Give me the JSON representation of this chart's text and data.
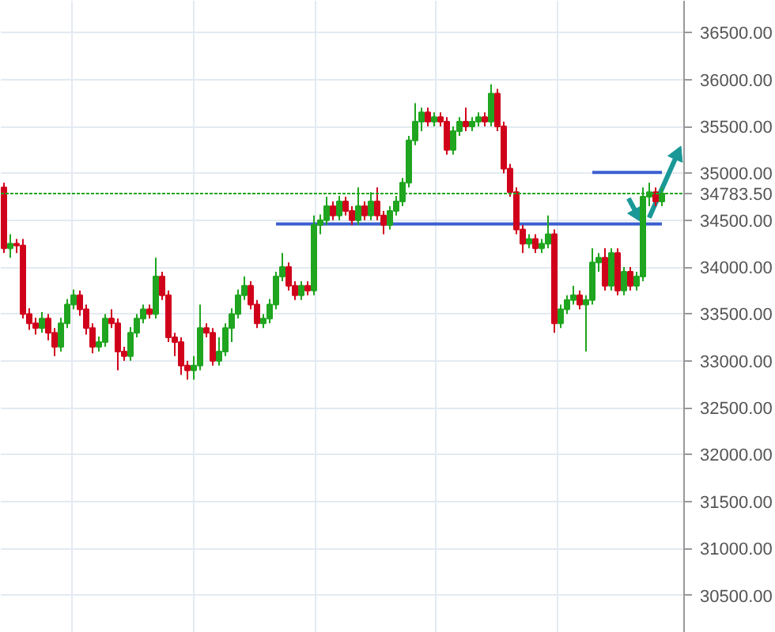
{
  "chart_data": {
    "type": "candlestick",
    "categories": [
      null,
      null,
      null,
      null,
      null,
      null,
      null,
      null,
      null,
      null,
      null,
      null,
      null,
      null,
      null,
      null,
      null,
      null,
      null,
      null,
      null,
      null,
      null,
      null,
      null,
      null,
      null,
      null,
      null,
      null,
      null,
      null,
      null,
      null,
      null,
      null,
      null,
      null,
      null,
      null,
      null,
      null,
      null,
      null,
      null,
      null,
      null,
      null,
      null,
      null,
      null,
      null,
      null,
      null,
      null,
      null,
      null,
      null,
      null,
      null,
      null,
      null,
      null,
      null,
      null,
      null,
      null,
      null,
      null,
      null,
      null,
      null,
      null,
      null,
      null,
      null,
      null,
      null,
      null,
      null,
      null,
      null,
      null,
      null,
      null,
      null,
      null,
      null,
      null,
      null,
      null,
      null,
      null,
      null,
      null,
      null,
      null,
      null,
      null,
      null,
      null,
      null,
      null,
      null,
      null
    ],
    "ohlc": [
      [
        34850,
        34900,
        34150,
        34200
      ],
      [
        34200,
        34350,
        34100,
        34250
      ],
      [
        34250,
        34300,
        34150,
        34230
      ],
      [
        34230,
        34300,
        33450,
        33500
      ],
      [
        33500,
        33560,
        33330,
        33400
      ],
      [
        33400,
        33460,
        33280,
        33350
      ],
      [
        33350,
        33520,
        33300,
        33450
      ],
      [
        33450,
        33500,
        33220,
        33300
      ],
      [
        33300,
        33350,
        33050,
        33150
      ],
      [
        33150,
        33460,
        33100,
        33400
      ],
      [
        33400,
        33660,
        33350,
        33600
      ],
      [
        33600,
        33760,
        33550,
        33700
      ],
      [
        33700,
        33750,
        33480,
        33550
      ],
      [
        33550,
        33600,
        33280,
        33350
      ],
      [
        33350,
        33400,
        33080,
        33150
      ],
      [
        33150,
        33260,
        33100,
        33200
      ],
      [
        33200,
        33500,
        33150,
        33450
      ],
      [
        33450,
        33550,
        33350,
        33400
      ],
      [
        33400,
        33450,
        32900,
        33100
      ],
      [
        33100,
        33150,
        33000,
        33050
      ],
      [
        33050,
        33360,
        33000,
        33300
      ],
      [
        33300,
        33500,
        33250,
        33450
      ],
      [
        33450,
        33600,
        33400,
        33550
      ],
      [
        33550,
        33600,
        33450,
        33500
      ],
      [
        33500,
        34100,
        33450,
        33900
      ],
      [
        33900,
        33950,
        33650,
        33700
      ],
      [
        33700,
        33750,
        33200,
        33250
      ],
      [
        33250,
        33300,
        33050,
        33200
      ],
      [
        33200,
        33250,
        32850,
        32950
      ],
      [
        32950,
        33000,
        32800,
        32900
      ],
      [
        32900,
        33050,
        32800,
        32950
      ],
      [
        32950,
        33600,
        32900,
        33350
      ],
      [
        33350,
        33400,
        33250,
        33300
      ],
      [
        33300,
        33350,
        32950,
        33000
      ],
      [
        33000,
        33250,
        32950,
        33100
      ],
      [
        33100,
        33400,
        33050,
        33350
      ],
      [
        33350,
        33560,
        33200,
        33500
      ],
      [
        33500,
        33760,
        33450,
        33700
      ],
      [
        33700,
        33900,
        33650,
        33800
      ],
      [
        33800,
        33850,
        33550,
        33600
      ],
      [
        33600,
        33650,
        33350,
        33400
      ],
      [
        33400,
        33500,
        33350,
        33450
      ],
      [
        33450,
        33660,
        33400,
        33600
      ],
      [
        33600,
        33950,
        33550,
        33900
      ],
      [
        33900,
        34150,
        33850,
        34000
      ],
      [
        34000,
        34050,
        33750,
        33800
      ],
      [
        33800,
        33850,
        33650,
        33700
      ],
      [
        33700,
        33850,
        33650,
        33800
      ],
      [
        33800,
        33850,
        33700,
        33750
      ],
      [
        33750,
        34550,
        33700,
        34450
      ],
      [
        34450,
        34560,
        34350,
        34500
      ],
      [
        34500,
        34750,
        34450,
        34650
      ],
      [
        34650,
        34700,
        34500,
        34550
      ],
      [
        34550,
        34760,
        34500,
        34700
      ],
      [
        34700,
        34750,
        34550,
        34600
      ],
      [
        34600,
        34650,
        34450,
        34500
      ],
      [
        34500,
        34850,
        34450,
        34650
      ],
      [
        34650,
        34700,
        34500,
        34550
      ],
      [
        34550,
        34800,
        34500,
        34700
      ],
      [
        34700,
        34850,
        34500,
        34550
      ],
      [
        34550,
        34600,
        34350,
        34450
      ],
      [
        34450,
        34650,
        34400,
        34600
      ],
      [
        34600,
        34760,
        34550,
        34700
      ],
      [
        34700,
        34950,
        34650,
        34900
      ],
      [
        34900,
        35400,
        34850,
        35350
      ],
      [
        35350,
        35750,
        35300,
        35550
      ],
      [
        35550,
        35700,
        35450,
        35650
      ],
      [
        35650,
        35700,
        35500,
        35550
      ],
      [
        35550,
        35650,
        35500,
        35600
      ],
      [
        35600,
        35650,
        35500,
        35550
      ],
      [
        35550,
        35600,
        35200,
        35250
      ],
      [
        35250,
        35500,
        35200,
        35450
      ],
      [
        35450,
        35600,
        35400,
        35550
      ],
      [
        35550,
        35700,
        35450,
        35500
      ],
      [
        35500,
        35600,
        35450,
        35550
      ],
      [
        35550,
        35650,
        35500,
        35600
      ],
      [
        35600,
        35650,
        35500,
        35550
      ],
      [
        35550,
        35950,
        35500,
        35850
      ],
      [
        35850,
        35900,
        35450,
        35500
      ],
      [
        35500,
        35550,
        35000,
        35050
      ],
      [
        35050,
        35100,
        34750,
        34800
      ],
      [
        34800,
        34850,
        34350,
        34400
      ],
      [
        34400,
        34450,
        34150,
        34250
      ],
      [
        34250,
        34350,
        34200,
        34300
      ],
      [
        34300,
        34350,
        34150,
        34200
      ],
      [
        34200,
        34300,
        34150,
        34250
      ],
      [
        34250,
        34550,
        34200,
        34350
      ],
      [
        34350,
        34400,
        33300,
        33400
      ],
      [
        33400,
        33600,
        33350,
        33550
      ],
      [
        33550,
        33700,
        33500,
        33650
      ],
      [
        33650,
        33800,
        33600,
        33700
      ],
      [
        33700,
        33750,
        33550,
        33600
      ],
      [
        33600,
        33700,
        33100,
        33650
      ],
      [
        33650,
        34200,
        33600,
        34050
      ],
      [
        34050,
        34150,
        33950,
        34100
      ],
      [
        34100,
        34200,
        33750,
        33800
      ],
      [
        33800,
        34200,
        33750,
        34150
      ],
      [
        34150,
        34200,
        33700,
        33750
      ],
      [
        33750,
        34000,
        33700,
        33950
      ],
      [
        33950,
        34000,
        33750,
        33800
      ],
      [
        33800,
        33950,
        33750,
        33900
      ],
      [
        33900,
        34850,
        33850,
        34750
      ],
      [
        34750,
        34900,
        34650,
        34800
      ],
      [
        34800,
        34850,
        34650,
        34700
      ],
      [
        34700,
        34850,
        34650,
        34783.5
      ]
    ],
    "colors": [
      "#d0021b",
      "#1fa51f",
      "#d0021b",
      "#d0021b",
      "#d0021b",
      "#d0021b",
      "#1fa51f",
      "#d0021b",
      "#d0021b",
      "#1fa51f",
      "#1fa51f",
      "#1fa51f",
      "#d0021b",
      "#d0021b",
      "#d0021b",
      "#1fa51f",
      "#1fa51f",
      "#d0021b",
      "#d0021b",
      "#d0021b",
      "#1fa51f",
      "#1fa51f",
      "#1fa51f",
      "#d0021b",
      "#1fa51f",
      "#d0021b",
      "#d0021b",
      "#d0021b",
      "#d0021b",
      "#d0021b",
      "#1fa51f",
      "#1fa51f",
      "#d0021b",
      "#d0021b",
      "#1fa51f",
      "#1fa51f",
      "#1fa51f",
      "#1fa51f",
      "#1fa51f",
      "#d0021b",
      "#d0021b",
      "#1fa51f",
      "#1fa51f",
      "#1fa51f",
      "#1fa51f",
      "#d0021b",
      "#d0021b",
      "#1fa51f",
      "#d0021b",
      "#1fa51f",
      "#1fa51f",
      "#1fa51f",
      "#d0021b",
      "#1fa51f",
      "#d0021b",
      "#d0021b",
      "#1fa51f",
      "#d0021b",
      "#1fa51f",
      "#d0021b",
      "#d0021b",
      "#1fa51f",
      "#1fa51f",
      "#1fa51f",
      "#1fa51f",
      "#1fa51f",
      "#1fa51f",
      "#d0021b",
      "#1fa51f",
      "#d0021b",
      "#d0021b",
      "#1fa51f",
      "#1fa51f",
      "#d0021b",
      "#1fa51f",
      "#1fa51f",
      "#d0021b",
      "#1fa51f",
      "#d0021b",
      "#d0021b",
      "#d0021b",
      "#d0021b",
      "#d0021b",
      "#1fa51f",
      "#d0021b",
      "#1fa51f",
      "#1fa51f",
      "#d0021b",
      "#1fa51f",
      "#1fa51f",
      "#1fa51f",
      "#d0021b",
      "#1fa51f",
      "#1fa51f",
      "#1fa51f",
      "#d0021b",
      "#1fa51f",
      "#d0021b",
      "#1fa51f",
      "#d0021b",
      "#1fa51f",
      "#1fa51f",
      "#1fa51f",
      "#d0021b",
      "#1fa51f"
    ],
    "series": [
      {
        "type": "line",
        "color": "#3b5fd0",
        "values": [
          null,
          null,
          null,
          null,
          null,
          null,
          null,
          null,
          null,
          null,
          null,
          null,
          null,
          null,
          null,
          null,
          null,
          null,
          null,
          null,
          null,
          null,
          null,
          null,
          null,
          null,
          null,
          null,
          null,
          null,
          null,
          null,
          null,
          null,
          null,
          null,
          null,
          null,
          null,
          null,
          null,
          null,
          null,
          34460,
          34460,
          34460,
          34460,
          34460,
          34460,
          34460,
          34460,
          34460,
          34460,
          34460,
          34460,
          34460,
          34460,
          34460,
          34460,
          34460,
          34460,
          34460,
          34460,
          34460,
          34460,
          34460,
          34460,
          34460,
          34460,
          34460,
          34460,
          34460,
          34460,
          34460,
          34460,
          34460,
          34460,
          34460,
          34460,
          34460,
          34460,
          34460,
          34460,
          34460,
          34460,
          34460,
          34460,
          34460,
          34460,
          34460,
          34460,
          34460,
          34460,
          34460,
          34460,
          34460,
          34460,
          34460,
          34460,
          34460,
          34460,
          34460,
          34460,
          34460,
          34460
        ]
      },
      {
        "type": "line",
        "color": "#3b5fd0",
        "values": [
          null,
          null,
          null,
          null,
          null,
          null,
          null,
          null,
          null,
          null,
          null,
          null,
          null,
          null,
          null,
          null,
          null,
          null,
          null,
          null,
          null,
          null,
          null,
          null,
          null,
          null,
          null,
          null,
          null,
          null,
          null,
          null,
          null,
          null,
          null,
          null,
          null,
          null,
          null,
          null,
          null,
          null,
          null,
          null,
          null,
          null,
          null,
          null,
          null,
          null,
          null,
          null,
          null,
          null,
          null,
          null,
          null,
          null,
          null,
          null,
          null,
          null,
          null,
          null,
          null,
          null,
          null,
          null,
          null,
          null,
          null,
          null,
          null,
          null,
          null,
          null,
          null,
          null,
          null,
          null,
          null,
          null,
          null,
          null,
          null,
          null,
          null,
          null,
          null,
          null,
          null,
          null,
          null,
          35010,
          35010,
          35010,
          35010,
          35010,
          35010,
          35010,
          35010,
          35010,
          35010,
          35010,
          35010
        ]
      }
    ],
    "ref_lines": [
      {
        "axis": "y",
        "value": 34783.5,
        "label": "34783.50",
        "color": "#1fa51f",
        "line_style": "dotted"
      }
    ],
    "ylim": [
      30100,
      36840
    ],
    "yticks": [
      {
        "value": 30500,
        "label": "30500.00"
      },
      {
        "value": 31000,
        "label": "31000.00"
      },
      {
        "value": 31500,
        "label": "31500.00"
      },
      {
        "value": 32000,
        "label": "32000.00"
      },
      {
        "value": 32500,
        "label": "32500.00"
      },
      {
        "value": 33000,
        "label": "33000.00"
      },
      {
        "value": 33500,
        "label": "33500.00"
      },
      {
        "value": 34000,
        "label": "34000.00"
      },
      {
        "value": 34500,
        "label": "34500.00"
      },
      {
        "value": 35000,
        "label": "35000.00"
      },
      {
        "value": 35500,
        "label": "35500.00"
      },
      {
        "value": 36000,
        "label": "36000.00"
      },
      {
        "value": 36500,
        "label": "36500.00"
      }
    ],
    "tick_labels": "y",
    "grid": true
  }
}
